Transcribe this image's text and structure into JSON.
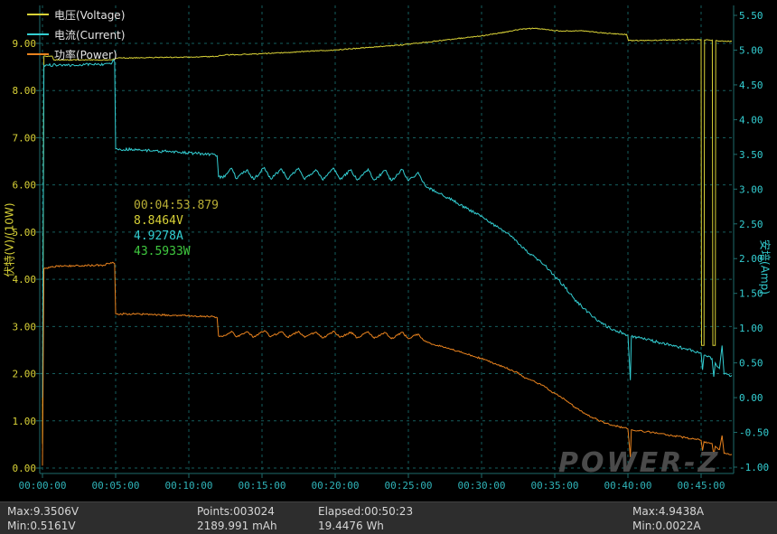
{
  "colors": {
    "background": "#000000",
    "status_bar_bg": "#2d2d2d",
    "grid": "#155e5e",
    "frame": "#1e6d6d",
    "voltage": "#d9d237",
    "current": "#33ced2",
    "power": "#e8821e",
    "x_tick_text": "#2fb3b8",
    "left_axis_text": "#d9d237",
    "right_axis_text": "#33ced2",
    "legend_text": "#e6e6e6",
    "annotation_time": "#b9ae35",
    "annotation_power": "#3fc93f",
    "status_text": "#d6d6d6",
    "watermark": "#4f4f4f"
  },
  "watermark_text": "POWER-Z",
  "cursor_readout": {
    "time": "00:04:53.879",
    "voltage": "8.8464V",
    "current": "4.9278A",
    "power": "43.5933W"
  },
  "status_bar": {
    "voltage_max": "Max:9.3506V",
    "voltage_min": "Min:0.5161V",
    "points": "Points:003024",
    "capacity_mah": "2189.991 mAh",
    "elapsed": "Elapsed:00:50:23",
    "energy_wh": "19.4476 Wh",
    "current_max": "Max:4.9438A",
    "current_min": "Min:0.0022A"
  },
  "chart_data": {
    "type": "line",
    "title": "",
    "grid": "dashed",
    "legend_position": "top-left",
    "x_axis": {
      "tick_seconds": [
        0,
        300,
        600,
        900,
        1200,
        1500,
        1800,
        2100,
        2400,
        2700
      ],
      "tick_labels": [
        "00:00:00",
        "00:05:00",
        "00:10:00",
        "00:15:00",
        "00:20:00",
        "00:25:00",
        "00:30:00",
        "00:35:00",
        "00:40:00",
        "00:45:00"
      ],
      "range_seconds": [
        0,
        2826
      ]
    },
    "left_axis": {
      "title": "伏特(V)/(10W)",
      "ticks": [
        9,
        8,
        7,
        6,
        5,
        4,
        3,
        2,
        1,
        0
      ],
      "tick_labels": [
        "9.00",
        "8.00",
        "7.00",
        "6.00",
        "5.00",
        "4.00",
        "3.00",
        "2.00",
        "1.00",
        "0.00"
      ]
    },
    "right_axis": {
      "title": "安培(Amp)",
      "ticks": [
        5.5,
        5,
        4.5,
        4,
        3.5,
        3,
        2.5,
        2,
        1.5,
        1,
        0.5,
        0,
        -0.5,
        -1
      ],
      "tick_labels": [
        "5.50",
        "5.00",
        "4.50",
        "4.00",
        "3.50",
        "3.00",
        "2.50",
        "2.00",
        "1.50",
        "1.00",
        "0.50",
        "0.00",
        "-0.50",
        "-1.00"
      ]
    },
    "series": [
      {
        "id": "voltage",
        "name": "电压(Voltage)",
        "unit": "V",
        "axis": "left",
        "color": "#d9d237",
        "noise": 0.01,
        "points": [
          [
            0,
            0.52
          ],
          [
            6,
            8.73
          ],
          [
            40,
            8.73
          ],
          [
            46,
            8.65
          ],
          [
            280,
            8.65
          ],
          [
            298,
            8.68
          ],
          [
            310,
            8.69
          ],
          [
            450,
            8.7
          ],
          [
            600,
            8.71
          ],
          [
            715,
            8.72
          ],
          [
            728,
            8.75
          ],
          [
            900,
            8.78
          ],
          [
            1050,
            8.82
          ],
          [
            1200,
            8.86
          ],
          [
            1350,
            8.92
          ],
          [
            1500,
            8.98
          ],
          [
            1600,
            9.04
          ],
          [
            1700,
            9.1
          ],
          [
            1800,
            9.16
          ],
          [
            1900,
            9.24
          ],
          [
            1955,
            9.3
          ],
          [
            2020,
            9.32
          ],
          [
            2080,
            9.28
          ],
          [
            2140,
            9.26
          ],
          [
            2200,
            9.27
          ],
          [
            2260,
            9.24
          ],
          [
            2320,
            9.21
          ],
          [
            2395,
            9.19
          ],
          [
            2402,
            9.06
          ],
          [
            2460,
            9.06
          ],
          [
            2550,
            9.07
          ],
          [
            2650,
            9.08
          ],
          [
            2700,
            9.08
          ],
          [
            2702,
            2.6
          ],
          [
            2712,
            2.6
          ],
          [
            2714,
            9.07
          ],
          [
            2746,
            9.07
          ],
          [
            2748,
            2.6
          ],
          [
            2758,
            2.6
          ],
          [
            2760,
            9.06
          ],
          [
            2800,
            9.05
          ],
          [
            2826,
            9.04
          ]
        ]
      },
      {
        "id": "current",
        "name": "电流(Current)",
        "unit": "A",
        "axis": "right",
        "color": "#33ced2",
        "noise": 0.02,
        "points": [
          [
            0,
            0.0
          ],
          [
            6,
            4.78
          ],
          [
            283,
            4.8
          ],
          [
            290,
            4.86
          ],
          [
            296,
            4.83
          ],
          [
            300,
            3.58
          ],
          [
            420,
            3.56
          ],
          [
            560,
            3.53
          ],
          [
            700,
            3.5
          ],
          [
            716,
            3.48
          ],
          [
            722,
            3.18
          ],
          [
            740,
            3.16
          ],
          [
            775,
            3.3
          ],
          [
            795,
            3.15
          ],
          [
            840,
            3.28
          ],
          [
            865,
            3.14
          ],
          [
            910,
            3.31
          ],
          [
            935,
            3.15
          ],
          [
            980,
            3.29
          ],
          [
            1005,
            3.14
          ],
          [
            1050,
            3.3
          ],
          [
            1075,
            3.14
          ],
          [
            1120,
            3.28
          ],
          [
            1150,
            3.13
          ],
          [
            1195,
            3.3
          ],
          [
            1220,
            3.14
          ],
          [
            1265,
            3.28
          ],
          [
            1290,
            3.13
          ],
          [
            1335,
            3.29
          ],
          [
            1360,
            3.13
          ],
          [
            1405,
            3.27
          ],
          [
            1430,
            3.12
          ],
          [
            1475,
            3.28
          ],
          [
            1500,
            3.12
          ],
          [
            1540,
            3.24
          ],
          [
            1560,
            3.1
          ],
          [
            1580,
            3.02
          ],
          [
            1620,
            2.95
          ],
          [
            1660,
            2.88
          ],
          [
            1700,
            2.8
          ],
          [
            1740,
            2.72
          ],
          [
            1780,
            2.64
          ],
          [
            1820,
            2.57
          ],
          [
            1860,
            2.46
          ],
          [
            1900,
            2.37
          ],
          [
            1940,
            2.27
          ],
          [
            1980,
            2.12
          ],
          [
            2020,
            2.02
          ],
          [
            2060,
            1.9
          ],
          [
            2100,
            1.74
          ],
          [
            2140,
            1.6
          ],
          [
            2180,
            1.42
          ],
          [
            2220,
            1.28
          ],
          [
            2260,
            1.16
          ],
          [
            2300,
            1.05
          ],
          [
            2340,
            0.98
          ],
          [
            2380,
            0.93
          ],
          [
            2400,
            0.9
          ],
          [
            2410,
            0.25
          ],
          [
            2414,
            0.88
          ],
          [
            2460,
            0.85
          ],
          [
            2520,
            0.8
          ],
          [
            2580,
            0.75
          ],
          [
            2640,
            0.7
          ],
          [
            2700,
            0.64
          ],
          [
            2706,
            0.4
          ],
          [
            2712,
            0.61
          ],
          [
            2745,
            0.56
          ],
          [
            2752,
            0.3
          ],
          [
            2758,
            0.5
          ],
          [
            2775,
            0.42
          ],
          [
            2786,
            0.75
          ],
          [
            2794,
            0.34
          ],
          [
            2826,
            0.32
          ]
        ]
      },
      {
        "id": "power",
        "name": "功率(Power)",
        "unit": "x10W",
        "axis": "left",
        "color": "#e8821e",
        "noise": 0.018,
        "points": [
          [
            0,
            0.05
          ],
          [
            6,
            4.22
          ],
          [
            60,
            4.28
          ],
          [
            250,
            4.3
          ],
          [
            288,
            4.36
          ],
          [
            296,
            4.33
          ],
          [
            300,
            3.27
          ],
          [
            420,
            3.26
          ],
          [
            560,
            3.23
          ],
          [
            700,
            3.21
          ],
          [
            716,
            3.19
          ],
          [
            722,
            2.8
          ],
          [
            740,
            2.79
          ],
          [
            775,
            2.9
          ],
          [
            795,
            2.78
          ],
          [
            840,
            2.89
          ],
          [
            865,
            2.77
          ],
          [
            910,
            2.91
          ],
          [
            935,
            2.78
          ],
          [
            980,
            2.89
          ],
          [
            1005,
            2.77
          ],
          [
            1050,
            2.9
          ],
          [
            1075,
            2.77
          ],
          [
            1120,
            2.88
          ],
          [
            1150,
            2.76
          ],
          [
            1195,
            2.9
          ],
          [
            1220,
            2.77
          ],
          [
            1265,
            2.88
          ],
          [
            1290,
            2.76
          ],
          [
            1335,
            2.89
          ],
          [
            1360,
            2.75
          ],
          [
            1405,
            2.87
          ],
          [
            1430,
            2.74
          ],
          [
            1475,
            2.88
          ],
          [
            1500,
            2.74
          ],
          [
            1540,
            2.84
          ],
          [
            1560,
            2.72
          ],
          [
            1580,
            2.66
          ],
          [
            1620,
            2.6
          ],
          [
            1660,
            2.54
          ],
          [
            1700,
            2.48
          ],
          [
            1740,
            2.41
          ],
          [
            1780,
            2.35
          ],
          [
            1820,
            2.29
          ],
          [
            1860,
            2.2
          ],
          [
            1900,
            2.12
          ],
          [
            1940,
            2.04
          ],
          [
            1980,
            1.91
          ],
          [
            2020,
            1.82
          ],
          [
            2060,
            1.72
          ],
          [
            2100,
            1.58
          ],
          [
            2140,
            1.46
          ],
          [
            2180,
            1.3
          ],
          [
            2220,
            1.17
          ],
          [
            2260,
            1.06
          ],
          [
            2300,
            0.97
          ],
          [
            2340,
            0.9
          ],
          [
            2380,
            0.86
          ],
          [
            2400,
            0.83
          ],
          [
            2410,
            0.23
          ],
          [
            2414,
            0.81
          ],
          [
            2460,
            0.78
          ],
          [
            2520,
            0.74
          ],
          [
            2580,
            0.69
          ],
          [
            2640,
            0.64
          ],
          [
            2700,
            0.59
          ],
          [
            2706,
            0.37
          ],
          [
            2712,
            0.56
          ],
          [
            2745,
            0.52
          ],
          [
            2752,
            0.28
          ],
          [
            2758,
            0.46
          ],
          [
            2775,
            0.39
          ],
          [
            2786,
            0.69
          ],
          [
            2794,
            0.31
          ],
          [
            2826,
            0.29
          ]
        ]
      }
    ]
  }
}
